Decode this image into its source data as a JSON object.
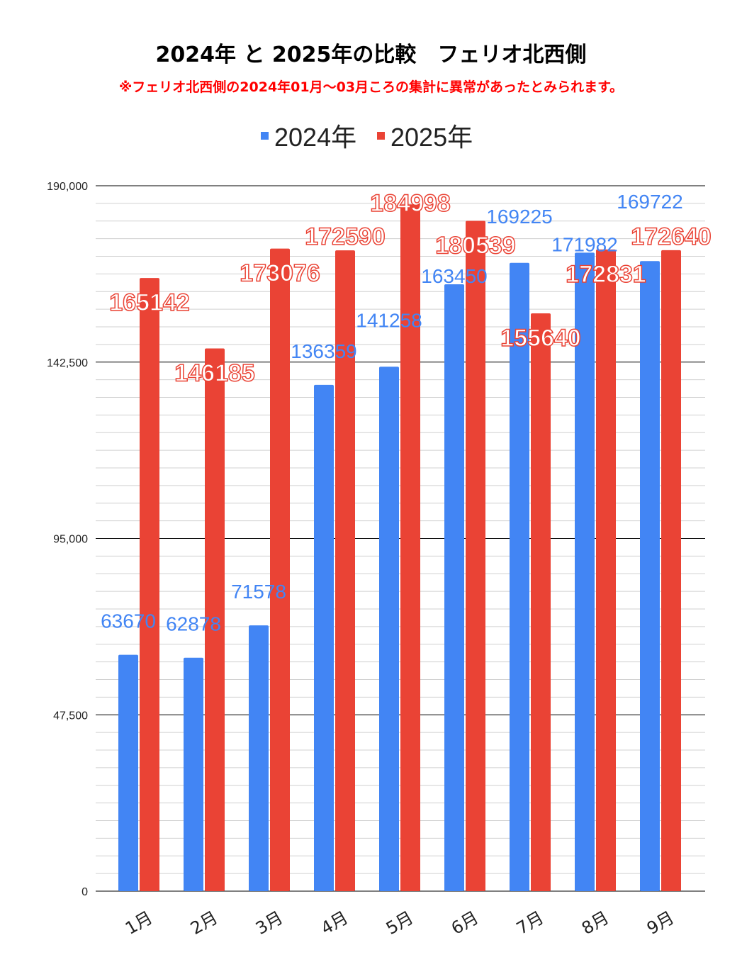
{
  "chart_data": {
    "type": "bar",
    "title": "2024年 と 2025年の比較　フェリオ北西側",
    "subtitle": "※フェリオ北西側の2024年01月～03月ころの集計に異常があったとみられます。",
    "categories": [
      "1月",
      "2月",
      "3月",
      "4月",
      "5月",
      "6月",
      "7月",
      "8月",
      "9月"
    ],
    "series": [
      {
        "name": "2024年",
        "color": "#4285f4",
        "values": [
          63670,
          62878,
          71578,
          136359,
          141258,
          163450,
          169225,
          171982,
          169722
        ]
      },
      {
        "name": "2025年",
        "color": "#ea4335",
        "values": [
          165142,
          146185,
          173076,
          172590,
          184998,
          180539,
          155640,
          172831,
          172640
        ]
      }
    ],
    "yticks": [
      "0",
      "47,500",
      "95,000",
      "142,500",
      "190,000"
    ],
    "ytick_values": [
      0,
      47500,
      95000,
      142500,
      190000
    ],
    "ylim": [
      0,
      190000
    ],
    "minor_step": 4750,
    "legend": "top",
    "grid": true,
    "xlabel": "",
    "ylabel": ""
  }
}
